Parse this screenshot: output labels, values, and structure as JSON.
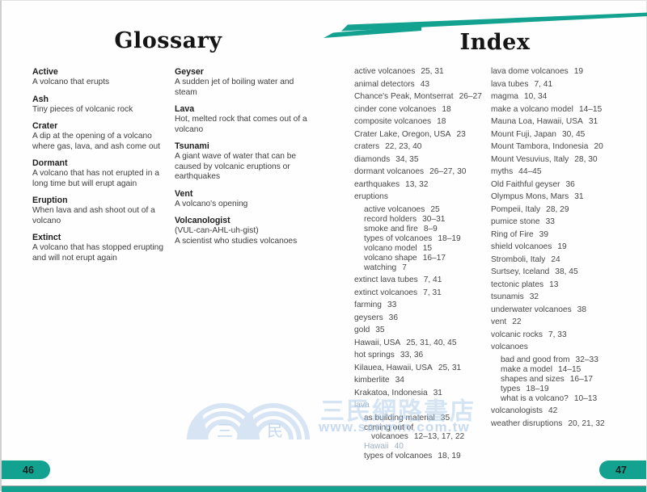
{
  "window": {
    "left_page_number": "46",
    "right_page_number": "47"
  },
  "colors": {
    "teal": "#13A190",
    "body_text": "#3C3C3C",
    "muted_text": "#9FAFC2",
    "watermark_blue": "#B7CFEC"
  },
  "glossary": {
    "title": "Glossary",
    "columns": [
      {
        "entries": [
          {
            "term": "Active",
            "def": "A volcano that erupts"
          },
          {
            "term": "Ash",
            "def": "Tiny pieces of volcanic rock"
          },
          {
            "term": "Crater",
            "def": "A dip at the opening of a volcano where gas, lava, and ash come out"
          },
          {
            "term": "Dormant",
            "def": "A volcano that has not erupted in a long time but will erupt again"
          },
          {
            "term": "Eruption",
            "def": "When lava and ash shoot out of a volcano"
          },
          {
            "term": "Extinct",
            "def": "A volcano that has stopped erupting and will not erupt again"
          }
        ]
      },
      {
        "entries": [
          {
            "term": "Geyser",
            "def": "A sudden jet of boiling water and steam"
          },
          {
            "term": "Lava",
            "def": "Hot, melted rock that comes out of a volcano"
          },
          {
            "term": "Tsunami",
            "def": "A giant wave of water that can be caused by volcanic eruptions or earthquakes"
          },
          {
            "term": "Vent",
            "def": "A volcano's opening"
          },
          {
            "term": "Volcanologist",
            "def": "(VUL-can-AHL-uh-gist)",
            "def2": "A scientist who studies volcanoes"
          }
        ]
      }
    ]
  },
  "index": {
    "title": "Index",
    "columns": [
      {
        "entries": [
          {
            "label": "active volcanoes",
            "pages": "25, 31"
          },
          {
            "label": "animal detectors",
            "pages": "43"
          },
          {
            "label": "Chance's Peak, Montserrat",
            "pages": "26–27"
          },
          {
            "label": "cinder cone volcanoes",
            "pages": "18"
          },
          {
            "label": "composite volcanoes",
            "pages": "18"
          },
          {
            "label": "Crater Lake, Oregon, USA",
            "pages": "23"
          },
          {
            "label": "craters",
            "pages": "22, 23, 40"
          },
          {
            "label": "diamonds",
            "pages": "34, 35"
          },
          {
            "label": "dormant volcanoes",
            "pages": "26–27, 30"
          },
          {
            "label": "earthquakes",
            "pages": "13, 32"
          },
          {
            "label": "eruptions",
            "pages": ""
          },
          {
            "label": "active volcanoes",
            "pages": "25",
            "sub": true
          },
          {
            "label": "record holders",
            "pages": "30–31",
            "sub": true
          },
          {
            "label": "smoke and fire",
            "pages": "8–9",
            "sub": true
          },
          {
            "label": "types of volcanoes",
            "pages": "18–19",
            "sub": true
          },
          {
            "label": "volcano model",
            "pages": "15",
            "sub": true
          },
          {
            "label": "volcano shape",
            "pages": "16–17",
            "sub": true
          },
          {
            "label": "watching",
            "pages": "7",
            "sub": true
          },
          {
            "label": "extinct lava tubes",
            "pages": "7, 41"
          },
          {
            "label": "extinct volcanoes",
            "pages": "7, 31"
          },
          {
            "label": "farming",
            "pages": "33"
          },
          {
            "label": "geysers",
            "pages": "36"
          },
          {
            "label": "gold",
            "pages": "35"
          },
          {
            "label": "Hawaii, USA",
            "pages": "25, 31, 40, 45"
          },
          {
            "label": "hot springs",
            "pages": "33, 36"
          },
          {
            "label": "Kilauea, Hawaii, USA",
            "pages": "25, 31"
          },
          {
            "label": "kimberlite",
            "pages": "34"
          },
          {
            "label": "Krakatoa, Indonesia",
            "pages": "31"
          },
          {
            "label": "lava",
            "pages": "",
            "muted": true
          },
          {
            "label": "as building material",
            "pages": "35",
            "sub": true
          },
          {
            "label": "coming out of volcanoes",
            "pages": "12–13, 17, 22",
            "sub": true
          },
          {
            "label": "Hawaii",
            "pages": "40",
            "sub": true,
            "muted": true
          },
          {
            "label": "types of volcanoes",
            "pages": "18, 19",
            "sub": true
          }
        ]
      },
      {
        "entries": [
          {
            "label": "lava dome volcanoes",
            "pages": "19"
          },
          {
            "label": "lava tubes",
            "pages": "7, 41"
          },
          {
            "label": "magma",
            "pages": "10, 34"
          },
          {
            "label": "make a volcano model",
            "pages": "14–15"
          },
          {
            "label": "Mauna Loa, Hawaii, USA",
            "pages": "31"
          },
          {
            "label": "Mount Fuji, Japan",
            "pages": "30, 45"
          },
          {
            "label": "Mount Tambora, Indonesia",
            "pages": "20"
          },
          {
            "label": "Mount Vesuvius, Italy",
            "pages": "28, 30"
          },
          {
            "label": "myths",
            "pages": "44–45"
          },
          {
            "label": "Old Faithful geyser",
            "pages": "36"
          },
          {
            "label": "Olympus Mons, Mars",
            "pages": "31"
          },
          {
            "label": "Pompeii, Italy",
            "pages": "28, 29"
          },
          {
            "label": "pumice stone",
            "pages": "33"
          },
          {
            "label": "Ring of Fire",
            "pages": "39"
          },
          {
            "label": "shield volcanoes",
            "pages": "19"
          },
          {
            "label": "Stromboli, Italy",
            "pages": "24"
          },
          {
            "label": "Surtsey, Iceland",
            "pages": "38, 45"
          },
          {
            "label": "tectonic plates",
            "pages": "13"
          },
          {
            "label": "tsunamis",
            "pages": "32"
          },
          {
            "label": "underwater volcanoes",
            "pages": "38"
          },
          {
            "label": "vent",
            "pages": "22"
          },
          {
            "label": "volcanic rocks",
            "pages": "7, 33"
          },
          {
            "label": "volcanoes",
            "pages": ""
          },
          {
            "label": "bad and good from",
            "pages": "32–33",
            "sub": true
          },
          {
            "label": "make a model",
            "pages": "14–15",
            "sub": true
          },
          {
            "label": "shapes and sizes",
            "pages": "16–17",
            "sub": true
          },
          {
            "label": "types",
            "pages": "18–19",
            "sub": true
          },
          {
            "label": "what is a volcano?",
            "pages": "10–13",
            "sub": true
          },
          {
            "label": "volcanologists",
            "pages": "42"
          },
          {
            "label": "weather disruptions",
            "pages": "20, 21, 32"
          }
        ]
      }
    ]
  },
  "watermark": {
    "store_text": "三民網路書店",
    "site_text": "www.sanmin.com.tw",
    "logo_char_1": "三",
    "logo_char_2": "民"
  }
}
